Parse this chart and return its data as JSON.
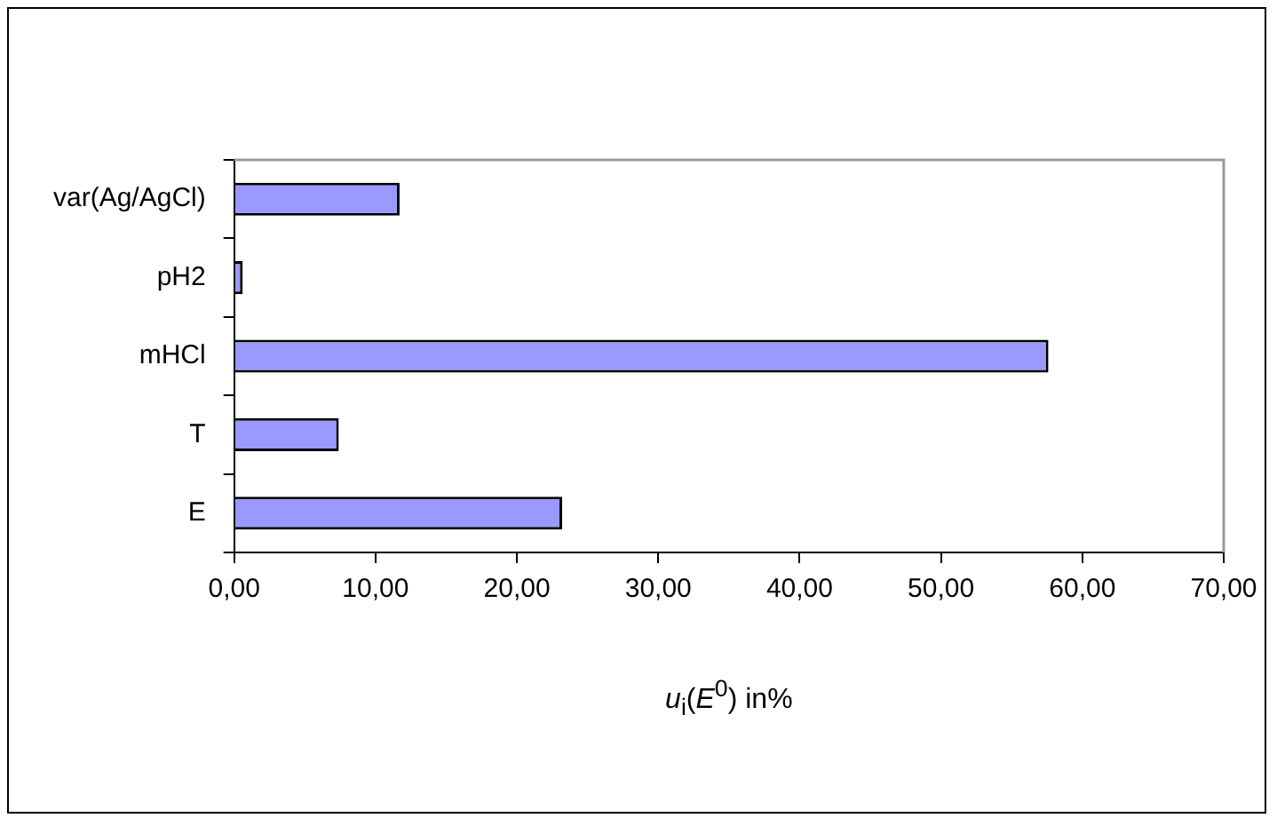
{
  "chart_data": {
    "type": "bar",
    "orientation": "horizontal",
    "xlabel": "u$_{i}$(E$^{0}$) in%",
    "categories": [
      "var(Ag/AgCl)",
      "pH2",
      "mHCl",
      "T",
      "E"
    ],
    "values": [
      11.7,
      0.6,
      57.6,
      7.4,
      23.2
    ],
    "color": "#9999ff",
    "xlim": [
      0,
      70
    ],
    "xticks": [
      {
        "value": 0,
        "label": "0,00"
      },
      {
        "value": 10,
        "label": "10,00"
      },
      {
        "value": 20,
        "label": "20,00"
      },
      {
        "value": 30,
        "label": "30,00"
      },
      {
        "value": 40,
        "label": "40,00"
      },
      {
        "value": 50,
        "label": "50,00"
      },
      {
        "value": 60,
        "label": "60,00"
      },
      {
        "value": 70,
        "label": "70,00"
      }
    ],
    "grid": false,
    "legend": false
  }
}
